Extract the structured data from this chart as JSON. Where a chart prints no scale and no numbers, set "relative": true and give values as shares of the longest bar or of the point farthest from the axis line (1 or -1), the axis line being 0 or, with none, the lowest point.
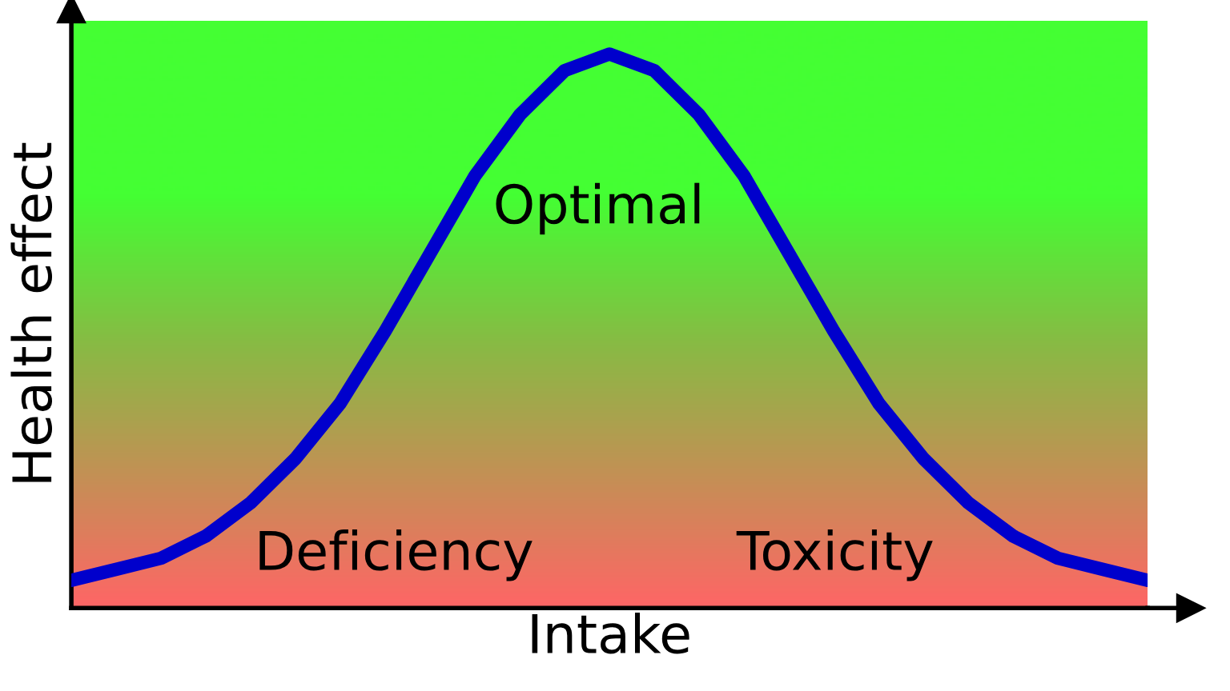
{
  "chart_data": {
    "type": "line",
    "relative": true,
    "xlabel": "Intake",
    "ylabel": "Health effect",
    "categories": [
      null,
      null,
      null,
      null,
      null,
      null,
      null,
      null,
      null,
      null,
      null,
      null,
      null,
      null,
      null,
      null,
      null,
      null,
      null,
      null,
      null,
      null,
      null,
      null,
      null
    ],
    "series": [
      {
        "color": "#0000cc",
        "values": [
          0.05,
          0.07,
          0.09,
          0.13,
          0.19,
          0.27,
          0.37,
          0.5,
          0.64,
          0.78,
          0.89,
          0.97,
          1.0,
          0.97,
          0.89,
          0.78,
          0.64,
          0.5,
          0.37,
          0.27,
          0.19,
          0.13,
          0.09,
          0.07,
          0.05
        ]
      }
    ],
    "annotations": [
      "Optimal",
      "Deficiency",
      "Toxicity"
    ],
    "legend": false
  }
}
